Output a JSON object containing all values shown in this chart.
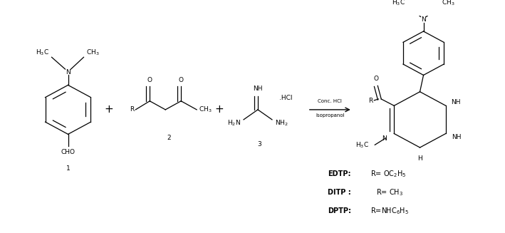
{
  "background_color": "#ffffff",
  "reaction_conditions": [
    "Conc. HCl",
    "Isopropanol"
  ],
  "legend_lines": [
    [
      "EDTP:",
      " R= OC$_2$H$_5$"
    ],
    [
      "DITP : ",
      "R= CH$_3$"
    ],
    [
      "DPTP:",
      " R=NHC$_6$H$_5$"
    ]
  ],
  "figure_width": 7.09,
  "figure_height": 3.27,
  "dpi": 100
}
